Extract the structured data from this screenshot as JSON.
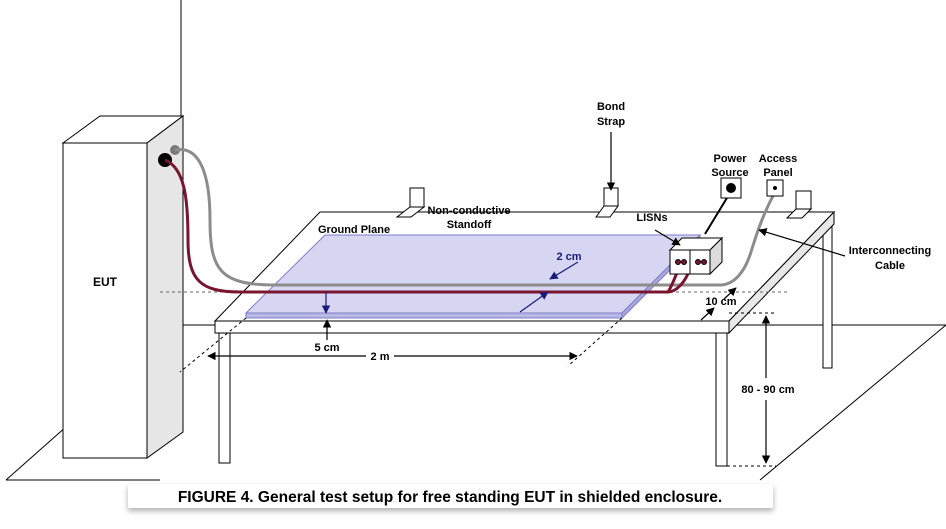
{
  "diagram": {
    "caption": "FIGURE 4.  General test setup for free standing EUT in shielded enclosure.",
    "labels": {
      "eut": "EUT",
      "bond_strap_line1": "Bond",
      "bond_strap_line2": "Strap",
      "power_source_line1": "Power",
      "power_source_line2": "Source",
      "access_panel_line1": "Access",
      "access_panel_line2": "Panel",
      "non_conductive_line1": "Non-conductive",
      "non_conductive_line2": "Standoff",
      "ground_plane": "Ground Plane",
      "lisns": "LISNs",
      "interconnecting_line1": "Interconnecting",
      "interconnecting_line2": "Cable",
      "two_cm": "2 cm",
      "ten_cm": "10 cm",
      "five_cm": "5 cm",
      "two_m": "2 m",
      "height": "80 - 90 cm"
    },
    "colors": {
      "power_cable": "#7a1530",
      "interconnect_cable": "#8c8c8c",
      "ground_plane_fill": "#d6d6f3",
      "ground_plane_edge": "#7e7ec8",
      "dimension_arrow": "#1a1a7a",
      "caption_shadow": "#bdbdbd"
    }
  }
}
